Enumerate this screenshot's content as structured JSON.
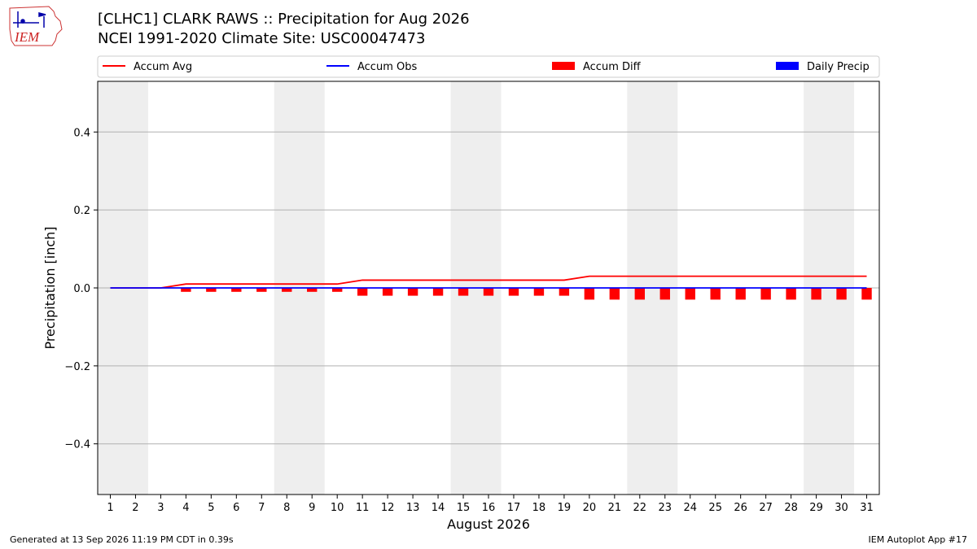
{
  "header": {
    "title_line1": "[CLHC1] CLARK RAWS :: Precipitation for Aug 2026",
    "title_line2": "NCEI 1991-2020 Climate Site: USC00047473",
    "logo_text": "IEM"
  },
  "footer": {
    "generated": "Generated at 13 Sep 2026 11:19 PM CDT in 0.39s",
    "app": "IEM Autoplot App #17"
  },
  "colors": {
    "accum_avg": "#ff0000",
    "accum_obs": "#0000ff",
    "accum_diff": "#ff0000",
    "daily_precip": "#0000ff",
    "weekend_shade": "#eeeeee",
    "grid": "#b0b0b0"
  },
  "chart_data": {
    "type": "bar",
    "xlabel": "August 2026",
    "ylabel": "Precipitation [inch]",
    "ylim": [
      -0.53,
      0.53
    ],
    "yticks": [
      -0.4,
      -0.2,
      0.0,
      0.2,
      0.4
    ],
    "ytick_labels": [
      "−0.4",
      "−0.2",
      "0.0",
      "0.2",
      "0.4"
    ],
    "xlim": [
      0.5,
      31.5
    ],
    "x": [
      1,
      2,
      3,
      4,
      5,
      6,
      7,
      8,
      9,
      10,
      11,
      12,
      13,
      14,
      15,
      16,
      17,
      18,
      19,
      20,
      21,
      22,
      23,
      24,
      25,
      26,
      27,
      28,
      29,
      30,
      31
    ],
    "xtick_labels": [
      "1",
      "2",
      "3",
      "4",
      "5",
      "6",
      "7",
      "8",
      "9",
      "10",
      "11",
      "12",
      "13",
      "14",
      "15",
      "16",
      "17",
      "18",
      "19",
      "20",
      "21",
      "22",
      "23",
      "24",
      "25",
      "26",
      "27",
      "28",
      "29",
      "30",
      "31"
    ],
    "shaded_day_ranges": [
      [
        0.5,
        2.5
      ],
      [
        7.5,
        9.5
      ],
      [
        14.5,
        16.5
      ],
      [
        21.5,
        23.5
      ],
      [
        28.5,
        30.5
      ]
    ],
    "grid": "horizontal",
    "legend_placement": "top",
    "legend": [
      "Accum Avg",
      "Accum Obs",
      "Accum Diff",
      "Daily Precip"
    ],
    "series": [
      {
        "name": "Accum Avg",
        "kind": "line",
        "values": [
          0,
          0,
          0,
          0.01,
          0.01,
          0.01,
          0.01,
          0.01,
          0.01,
          0.01,
          0.02,
          0.02,
          0.02,
          0.02,
          0.02,
          0.02,
          0.02,
          0.02,
          0.02,
          0.03,
          0.03,
          0.03,
          0.03,
          0.03,
          0.03,
          0.03,
          0.03,
          0.03,
          0.03,
          0.03,
          0.03
        ]
      },
      {
        "name": "Accum Obs",
        "kind": "line",
        "values": [
          0,
          0,
          0,
          0,
          0,
          0,
          0,
          0,
          0,
          0,
          0,
          0,
          0,
          0,
          0,
          0,
          0,
          0,
          0,
          0,
          0,
          0,
          0,
          0,
          0,
          0,
          0,
          0,
          0,
          0,
          0
        ]
      },
      {
        "name": "Accum Diff",
        "kind": "bar",
        "values": [
          0,
          0,
          0,
          -0.01,
          -0.01,
          -0.01,
          -0.01,
          -0.01,
          -0.01,
          -0.01,
          -0.02,
          -0.02,
          -0.02,
          -0.02,
          -0.02,
          -0.02,
          -0.02,
          -0.02,
          -0.02,
          -0.03,
          -0.03,
          -0.03,
          -0.03,
          -0.03,
          -0.03,
          -0.03,
          -0.03,
          -0.03,
          -0.03,
          -0.03,
          -0.03
        ]
      },
      {
        "name": "Daily Precip",
        "kind": "bar",
        "values": [
          0,
          0,
          0,
          0,
          0,
          0,
          0,
          0,
          0,
          0,
          0,
          0,
          0,
          0,
          0,
          0,
          0,
          0,
          0,
          0,
          0,
          0,
          0,
          0,
          0,
          0,
          0,
          0,
          0,
          0,
          0
        ]
      }
    ]
  }
}
